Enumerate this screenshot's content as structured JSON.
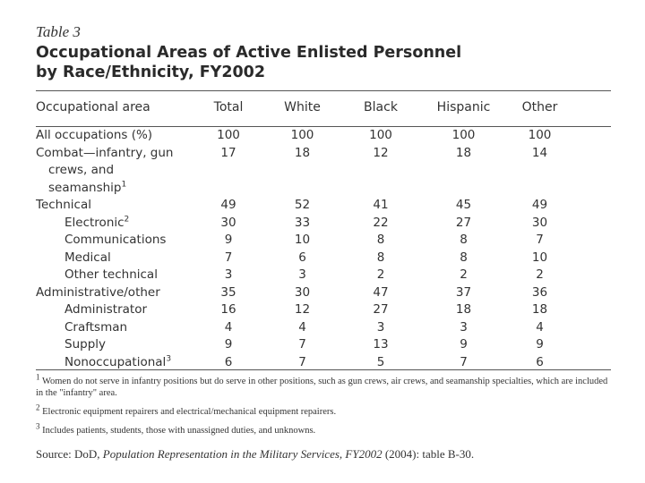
{
  "header": {
    "label": "Table 3",
    "title_lines": [
      "Occupational Areas of Active Enlisted Personnel",
      "by Race/Ethnicity, FY2002"
    ]
  },
  "table": {
    "columns": [
      "Occupational area",
      "Total",
      "White",
      "Black",
      "Hispanic",
      "Other"
    ],
    "rows": [
      {
        "label": "All occupations (%)",
        "values": [
          100,
          100,
          100,
          100,
          100
        ]
      },
      {
        "label": "Combat—infantry, gun crews, and seamanship",
        "note": "1",
        "values": [
          17,
          18,
          12,
          18,
          14
        ]
      },
      {
        "label": "Technical",
        "values": [
          49,
          52,
          41,
          45,
          49
        ],
        "items": [
          {
            "label": "Electronic",
            "note": "2",
            "values": [
              30,
              33,
              22,
              27,
              30
            ]
          },
          {
            "label": "Communications",
            "values": [
              9,
              10,
              8,
              8,
              7
            ]
          },
          {
            "label": "Medical",
            "values": [
              7,
              6,
              8,
              8,
              10
            ]
          },
          {
            "label": "Other technical",
            "values": [
              3,
              3,
              2,
              2,
              2
            ]
          }
        ]
      },
      {
        "label": "Administrative/other",
        "values": [
          35,
          30,
          47,
          37,
          36
        ],
        "items": [
          {
            "label": "Administrator",
            "values": [
              16,
              12,
              27,
              18,
              18
            ]
          },
          {
            "label": "Craftsman",
            "values": [
              4,
              4,
              3,
              3,
              4
            ]
          },
          {
            "label": "Supply",
            "values": [
              9,
              7,
              13,
              9,
              9
            ]
          },
          {
            "label": "Nonoccupational",
            "note": "3",
            "values": [
              6,
              7,
              5,
              7,
              6
            ]
          }
        ]
      }
    ]
  },
  "footnotes": [
    {
      "mark": "1",
      "text": "Women do not serve in infantry positions but do serve in other positions, such as gun crews, air crews, and seamanship specialties, which are included in the \"infantry\" area."
    },
    {
      "mark": "2",
      "text": "Electronic equipment repairers and electrical/mechanical equipment repairers."
    },
    {
      "mark": "3",
      "text": "Includes patients, students, those with unassigned duties, and unknowns."
    }
  ],
  "source": {
    "prefix": "Source: DoD,",
    "title": "Population Representation in the Military Services, FY2002",
    "suffix": "(2004): table B-30."
  }
}
